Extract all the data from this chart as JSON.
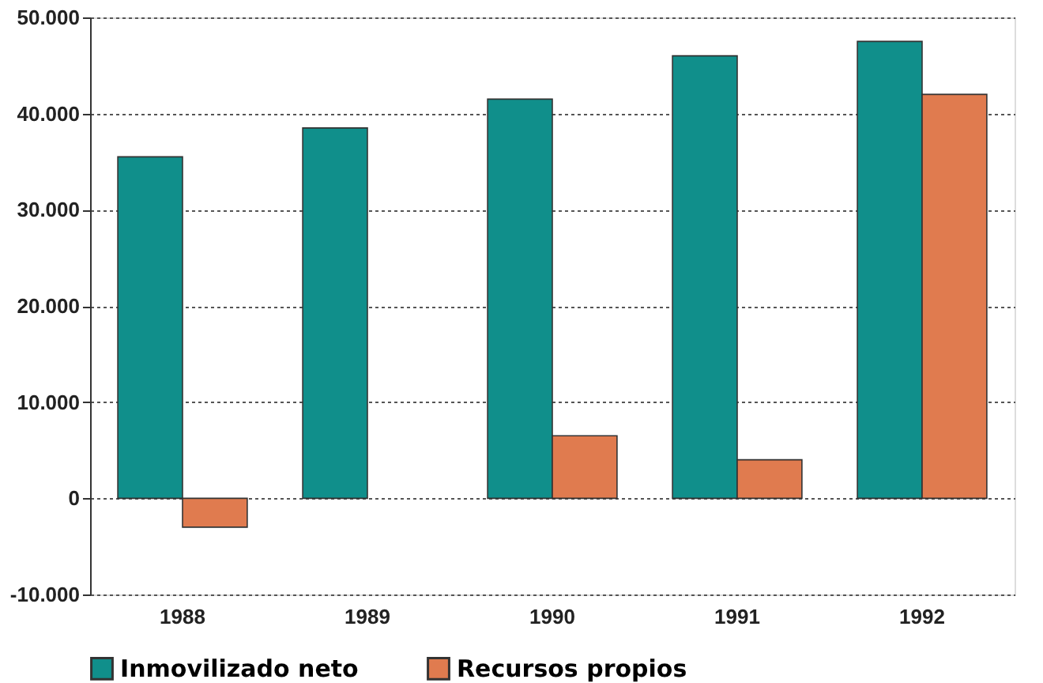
{
  "chart_data": {
    "type": "bar",
    "categories": [
      "1988",
      "1989",
      "1990",
      "1991",
      "1992"
    ],
    "series": [
      {
        "name": "Inmovilizado neto",
        "color": "#108f8b",
        "values": [
          35500,
          38500,
          41500,
          46000,
          47500
        ]
      },
      {
        "name": "Recursos propios",
        "color": "#e07b4f",
        "values": [
          -3000,
          null,
          6500,
          4000,
          42000
        ]
      }
    ],
    "ylim": [
      -10000,
      50000
    ],
    "yticks": [
      {
        "value": -10000,
        "label": "-10.000"
      },
      {
        "value": 0,
        "label": "0"
      },
      {
        "value": 10000,
        "label": "10.000"
      },
      {
        "value": 20000,
        "label": "20.000"
      },
      {
        "value": 30000,
        "label": "30.000"
      },
      {
        "value": 40000,
        "label": "40.000"
      },
      {
        "value": 50000,
        "label": "50.000"
      }
    ],
    "grid": "y",
    "legend": "bottom"
  }
}
